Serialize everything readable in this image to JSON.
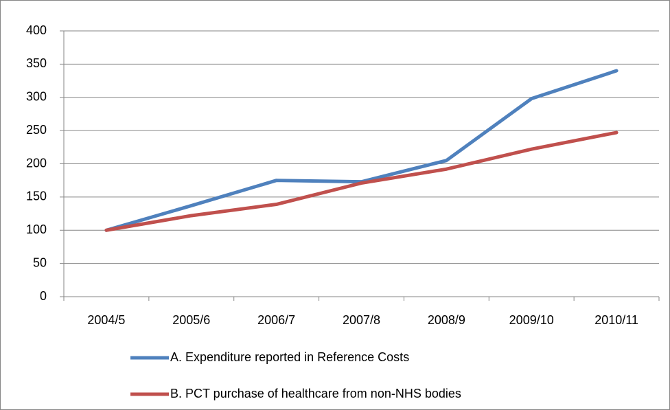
{
  "chart_data": {
    "type": "line",
    "categories": [
      "2004/5",
      "2005/6",
      "2006/7",
      "2007/8",
      "2008/9",
      "2009/10",
      "2010/11"
    ],
    "series": [
      {
        "name": "A. Expenditure reported in Reference Costs",
        "color": "#4f81bd",
        "values": [
          100,
          137,
          175,
          173,
          205,
          298,
          340
        ]
      },
      {
        "name": "B. PCT purchase of healthcare from non-NHS bodies",
        "color": "#c0504d",
        "values": [
          100,
          122,
          139,
          171,
          192,
          222,
          247
        ]
      }
    ],
    "ylim": [
      0,
      400
    ],
    "yticks": [
      0,
      50,
      100,
      150,
      200,
      250,
      300,
      350,
      400
    ],
    "grid": true,
    "legend": "bottom"
  }
}
